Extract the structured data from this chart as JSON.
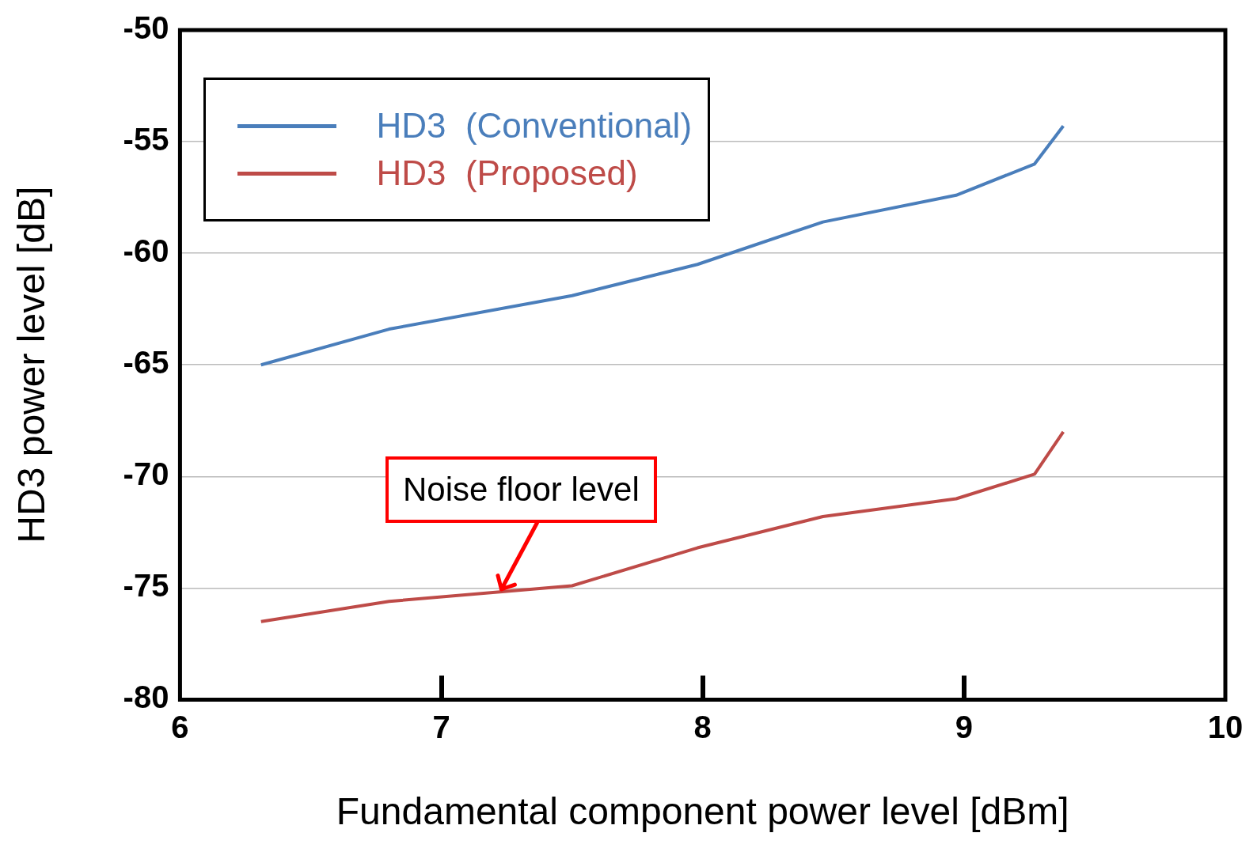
{
  "chart_data": {
    "type": "line",
    "xlabel": "Fundamental component power level [dBm]",
    "ylabel": "HD3 power level [dB]",
    "xlim": [
      6,
      10
    ],
    "xticks": [
      6,
      7,
      8,
      9,
      10
    ],
    "ylim": [
      -80,
      -50
    ],
    "yticks": [
      -80,
      -75,
      -70,
      -65,
      -60,
      -55,
      -50
    ],
    "grid": "y",
    "legend": "top left",
    "marker": "none",
    "line_style": "solid",
    "series": [
      {
        "name": "HD3  (Conventional)",
        "color": "#4a7ebb",
        "x": [
          6.31,
          6.8,
          7.5,
          7.98,
          8.46,
          8.97,
          9.27,
          9.38
        ],
        "values": [
          -65.0,
          -63.4,
          -61.9,
          -60.5,
          -58.6,
          -57.4,
          -56.0,
          -54.3
        ]
      },
      {
        "name": "HD3  (Proposed)",
        "color": "#be4b48",
        "x": [
          6.31,
          6.8,
          7.5,
          7.98,
          8.46,
          8.97,
          9.27,
          9.38
        ],
        "values": [
          -76.5,
          -75.6,
          -74.9,
          -73.2,
          -71.8,
          -71.0,
          -69.9,
          -68.0
        ]
      }
    ],
    "annotations": [
      {
        "text": "Noise floor level",
        "x": 7.23,
        "y": -75.2
      }
    ]
  }
}
